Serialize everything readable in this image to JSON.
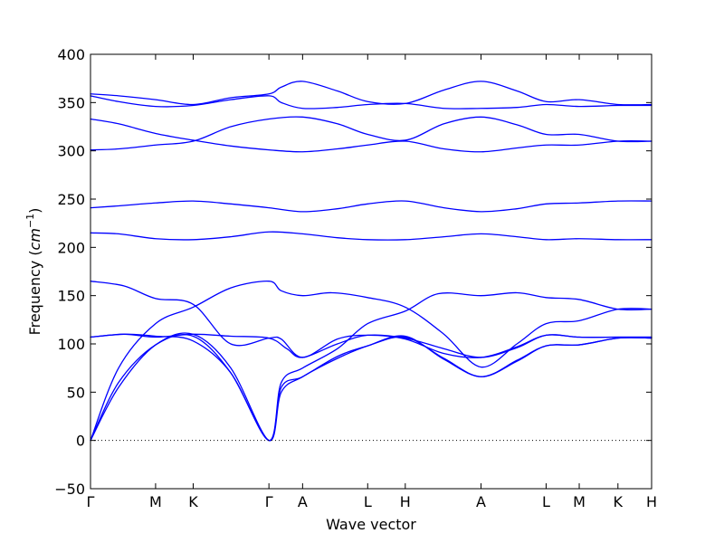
{
  "chart_data": {
    "type": "line",
    "title": "",
    "xlabel": "Wave vector",
    "ylabel_prefix": "Frequency (",
    "ylabel_unit_base": "cm",
    "ylabel_unit_exp": "−1",
    "ylabel_suffix": ")",
    "ylim": [
      -50,
      400
    ],
    "yticks": [
      -50,
      0,
      50,
      100,
      150,
      200,
      250,
      300,
      350,
      400
    ],
    "ytick_labels": [
      "−50",
      "0",
      "50",
      "100",
      "150",
      "200",
      "250",
      "300",
      "350",
      "400"
    ],
    "xlim": [
      0,
      100
    ],
    "xticks": [
      {
        "label": "Γ",
        "x": 0
      },
      {
        "label": "M",
        "x": 11.6
      },
      {
        "label": "K",
        "x": 18.3
      },
      {
        "label": "Γ",
        "x": 31.8
      },
      {
        "label": "A",
        "x": 37.8
      },
      {
        "label": "L",
        "x": 49.4
      },
      {
        "label": "H",
        "x": 56.1
      },
      {
        "label": "A",
        "x": 69.6
      },
      {
        "label": "L",
        "x": 81.2
      },
      {
        "label": "M",
        "x": 87.1
      },
      {
        "label": "K",
        "x": 94.0
      },
      {
        "label": "H",
        "x": 100
      }
    ],
    "grid": false,
    "zero_line": true,
    "line_color": "#0000ff",
    "series": [
      {
        "values": [
          [
            0,
            0
          ],
          [
            5,
            55
          ],
          [
            11.6,
            99
          ],
          [
            18.3,
            110
          ],
          [
            25,
            75
          ],
          [
            31.8,
            0
          ],
          [
            34,
            50
          ],
          [
            37.8,
            66
          ],
          [
            44,
            85
          ],
          [
            49.4,
            98
          ],
          [
            56.1,
            108
          ],
          [
            63,
            84
          ],
          [
            69.6,
            66
          ],
          [
            76,
            82
          ],
          [
            81.2,
            98
          ],
          [
            87.1,
            99
          ],
          [
            94,
            106
          ],
          [
            100,
            106
          ]
        ]
      },
      {
        "values": [
          [
            0,
            0
          ],
          [
            5,
            60
          ],
          [
            11.6,
            99
          ],
          [
            18.3,
            108
          ],
          [
            25,
            70
          ],
          [
            31.8,
            0
          ],
          [
            34,
            55
          ],
          [
            37.8,
            66
          ],
          [
            44,
            87
          ],
          [
            49.4,
            98
          ],
          [
            56.1,
            107
          ],
          [
            63,
            85
          ],
          [
            69.6,
            66
          ],
          [
            76,
            83
          ],
          [
            81.2,
            98
          ],
          [
            87.1,
            99
          ],
          [
            94,
            106
          ],
          [
            100,
            106
          ]
        ]
      },
      {
        "values": [
          [
            0,
            0
          ],
          [
            5,
            75
          ],
          [
            11.6,
            121
          ],
          [
            18.3,
            138
          ],
          [
            25,
            158
          ],
          [
            31.8,
            165
          ],
          [
            34,
            155
          ],
          [
            37.8,
            150
          ],
          [
            43,
            153
          ],
          [
            49.4,
            148
          ],
          [
            56.1,
            138
          ],
          [
            63,
            110
          ],
          [
            69.6,
            76
          ],
          [
            76,
            100
          ],
          [
            81.2,
            121
          ],
          [
            87.1,
            124
          ],
          [
            94,
            136
          ],
          [
            100,
            136
          ]
        ]
      },
      {
        "values": [
          [
            0,
            107
          ],
          [
            6,
            110
          ],
          [
            11.6,
            108
          ],
          [
            18.3,
            103
          ],
          [
            25,
            70
          ],
          [
            31.8,
            0
          ],
          [
            34,
            60
          ],
          [
            37.8,
            75
          ],
          [
            44,
            95
          ],
          [
            49.4,
            121
          ],
          [
            56.1,
            134
          ],
          [
            62,
            152
          ],
          [
            69.6,
            150
          ],
          [
            76,
            153
          ],
          [
            81.2,
            148
          ],
          [
            87.1,
            146
          ],
          [
            94,
            136
          ],
          [
            100,
            136
          ]
        ]
      },
      {
        "values": [
          [
            0,
            107
          ],
          [
            6,
            110
          ],
          [
            11.6,
            107
          ],
          [
            18.3,
            110
          ],
          [
            25,
            108
          ],
          [
            31.8,
            106
          ],
          [
            35,
            95
          ],
          [
            37.8,
            86
          ],
          [
            44,
            100
          ],
          [
            49.4,
            109
          ],
          [
            56.1,
            106
          ],
          [
            63,
            95
          ],
          [
            69.6,
            86
          ],
          [
            76,
            96
          ],
          [
            81.2,
            109
          ],
          [
            87.1,
            107
          ],
          [
            94,
            107
          ],
          [
            100,
            107
          ]
        ]
      },
      {
        "values": [
          [
            0,
            165
          ],
          [
            6,
            160
          ],
          [
            11.6,
            147
          ],
          [
            18.3,
            141
          ],
          [
            25,
            100
          ],
          [
            31.8,
            106
          ],
          [
            34,
            105
          ],
          [
            37.8,
            86
          ],
          [
            44,
            105
          ],
          [
            49.4,
            109
          ],
          [
            56.1,
            105
          ],
          [
            63,
            90
          ],
          [
            69.6,
            86
          ],
          [
            76,
            97
          ],
          [
            81.2,
            109
          ],
          [
            87.1,
            107
          ],
          [
            94,
            107
          ],
          [
            100,
            107
          ]
        ]
      },
      {
        "values": [
          [
            0,
            215
          ],
          [
            5,
            214
          ],
          [
            11.6,
            209
          ],
          [
            18.3,
            208
          ],
          [
            25,
            211
          ],
          [
            31.8,
            216
          ],
          [
            37.8,
            214
          ],
          [
            44,
            210
          ],
          [
            49.4,
            208
          ],
          [
            56.1,
            208
          ],
          [
            63,
            211
          ],
          [
            69.6,
            214
          ],
          [
            76,
            211
          ],
          [
            81.2,
            208
          ],
          [
            87.1,
            209
          ],
          [
            94,
            208
          ],
          [
            100,
            208
          ]
        ]
      },
      {
        "values": [
          [
            0,
            241
          ],
          [
            5,
            243
          ],
          [
            11.6,
            246
          ],
          [
            18.3,
            248
          ],
          [
            25,
            245
          ],
          [
            31.8,
            241
          ],
          [
            37.8,
            237
          ],
          [
            44,
            240
          ],
          [
            49.4,
            245
          ],
          [
            56.1,
            248
          ],
          [
            63,
            241
          ],
          [
            69.6,
            237
          ],
          [
            76,
            240
          ],
          [
            81.2,
            245
          ],
          [
            87.1,
            246
          ],
          [
            94,
            248
          ],
          [
            100,
            248
          ]
        ]
      },
      {
        "values": [
          [
            0,
            301
          ],
          [
            5,
            302
          ],
          [
            11.6,
            306
          ],
          [
            18.3,
            310
          ],
          [
            25,
            325
          ],
          [
            31.8,
            333
          ],
          [
            37.8,
            335
          ],
          [
            44,
            328
          ],
          [
            49.4,
            317
          ],
          [
            56.1,
            311
          ],
          [
            63,
            328
          ],
          [
            69.6,
            335
          ],
          [
            76,
            327
          ],
          [
            81.2,
            317
          ],
          [
            87.1,
            317
          ],
          [
            94,
            310
          ],
          [
            100,
            310
          ]
        ]
      },
      {
        "values": [
          [
            0,
            333
          ],
          [
            5,
            328
          ],
          [
            11.6,
            318
          ],
          [
            18.3,
            311
          ],
          [
            25,
            305
          ],
          [
            31.8,
            301
          ],
          [
            37.8,
            299
          ],
          [
            44,
            302
          ],
          [
            49.4,
            306
          ],
          [
            56.1,
            310
          ],
          [
            63,
            302
          ],
          [
            69.6,
            299
          ],
          [
            76,
            303
          ],
          [
            81.2,
            306
          ],
          [
            87.1,
            306
          ],
          [
            94,
            310
          ],
          [
            100,
            310
          ]
        ]
      },
      {
        "values": [
          [
            0,
            359
          ],
          [
            5,
            357
          ],
          [
            11.6,
            353
          ],
          [
            18.3,
            348
          ],
          [
            25,
            355
          ],
          [
            31.8,
            359
          ],
          [
            34,
            366
          ],
          [
            37.8,
            372
          ],
          [
            44,
            362
          ],
          [
            49.4,
            351
          ],
          [
            56.1,
            349
          ],
          [
            63,
            363
          ],
          [
            69.6,
            372
          ],
          [
            76,
            362
          ],
          [
            81.2,
            351
          ],
          [
            87.1,
            353
          ],
          [
            94,
            348
          ],
          [
            100,
            348
          ]
        ]
      },
      {
        "values": [
          [
            0,
            357
          ],
          [
            5,
            351
          ],
          [
            11.6,
            346
          ],
          [
            18.3,
            347
          ],
          [
            25,
            353
          ],
          [
            31.8,
            357
          ],
          [
            34,
            350
          ],
          [
            37.8,
            344
          ],
          [
            44,
            345
          ],
          [
            49.4,
            348
          ],
          [
            56.1,
            349
          ],
          [
            63,
            344
          ],
          [
            69.6,
            344
          ],
          [
            76,
            345
          ],
          [
            81.2,
            348
          ],
          [
            87.1,
            346
          ],
          [
            94,
            347
          ],
          [
            100,
            347
          ]
        ]
      }
    ]
  }
}
